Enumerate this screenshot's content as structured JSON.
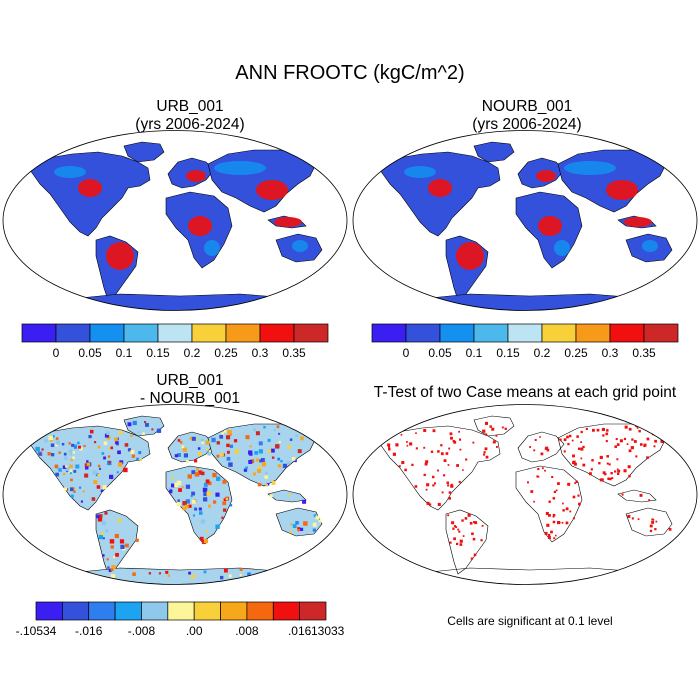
{
  "figure": {
    "title": "ANN FROOTC (kgC/m^2)"
  },
  "panels": [
    {
      "id": "urb",
      "title_line1": "URB_001",
      "title_line2": "(yrs 2006-2024)"
    },
    {
      "id": "nourb",
      "title_line1": "NOURB_001",
      "title_line2": "(yrs 2006-2024)"
    },
    {
      "id": "diff",
      "title_line1": "URB_001",
      "title_line2": "- NOURB_001"
    },
    {
      "id": "ttest",
      "title_line1": "T-Test of two Case means at each grid point",
      "title_line2": ""
    }
  ],
  "colorbar_main": {
    "colors": [
      "#3a1ef2",
      "#3451dc",
      "#1491f0",
      "#4cb8ec",
      "#bde4f2",
      "#f8d03a",
      "#f79a1a",
      "#f01010",
      "#cc2828"
    ],
    "labels": [
      "0",
      "0.05",
      "0.1",
      "0.15",
      "0.2",
      "0.25",
      "0.3",
      "0.35"
    ]
  },
  "colorbar_diff": {
    "colors": [
      "#3a1ef2",
      "#3451dc",
      "#2f7ef0",
      "#1ca3f2",
      "#8ec8ea",
      "#fdf59a",
      "#f8d03a",
      "#f7a81a",
      "#f5680f",
      "#f01010",
      "#cc2828"
    ],
    "labels": [
      "-.10534",
      "-.016",
      "-.008",
      ".00",
      ".008",
      ".016",
      ".13033"
    ]
  },
  "map_colors": {
    "land_main": "#3451dc",
    "hot_main": "#f01010",
    "mid_main": "#1491f0",
    "land_diff": "#a8d4ee",
    "ocean": "#ffffff",
    "significance": "#f01010"
  },
  "significance_note": "Cells are significant at 0.1 level"
}
